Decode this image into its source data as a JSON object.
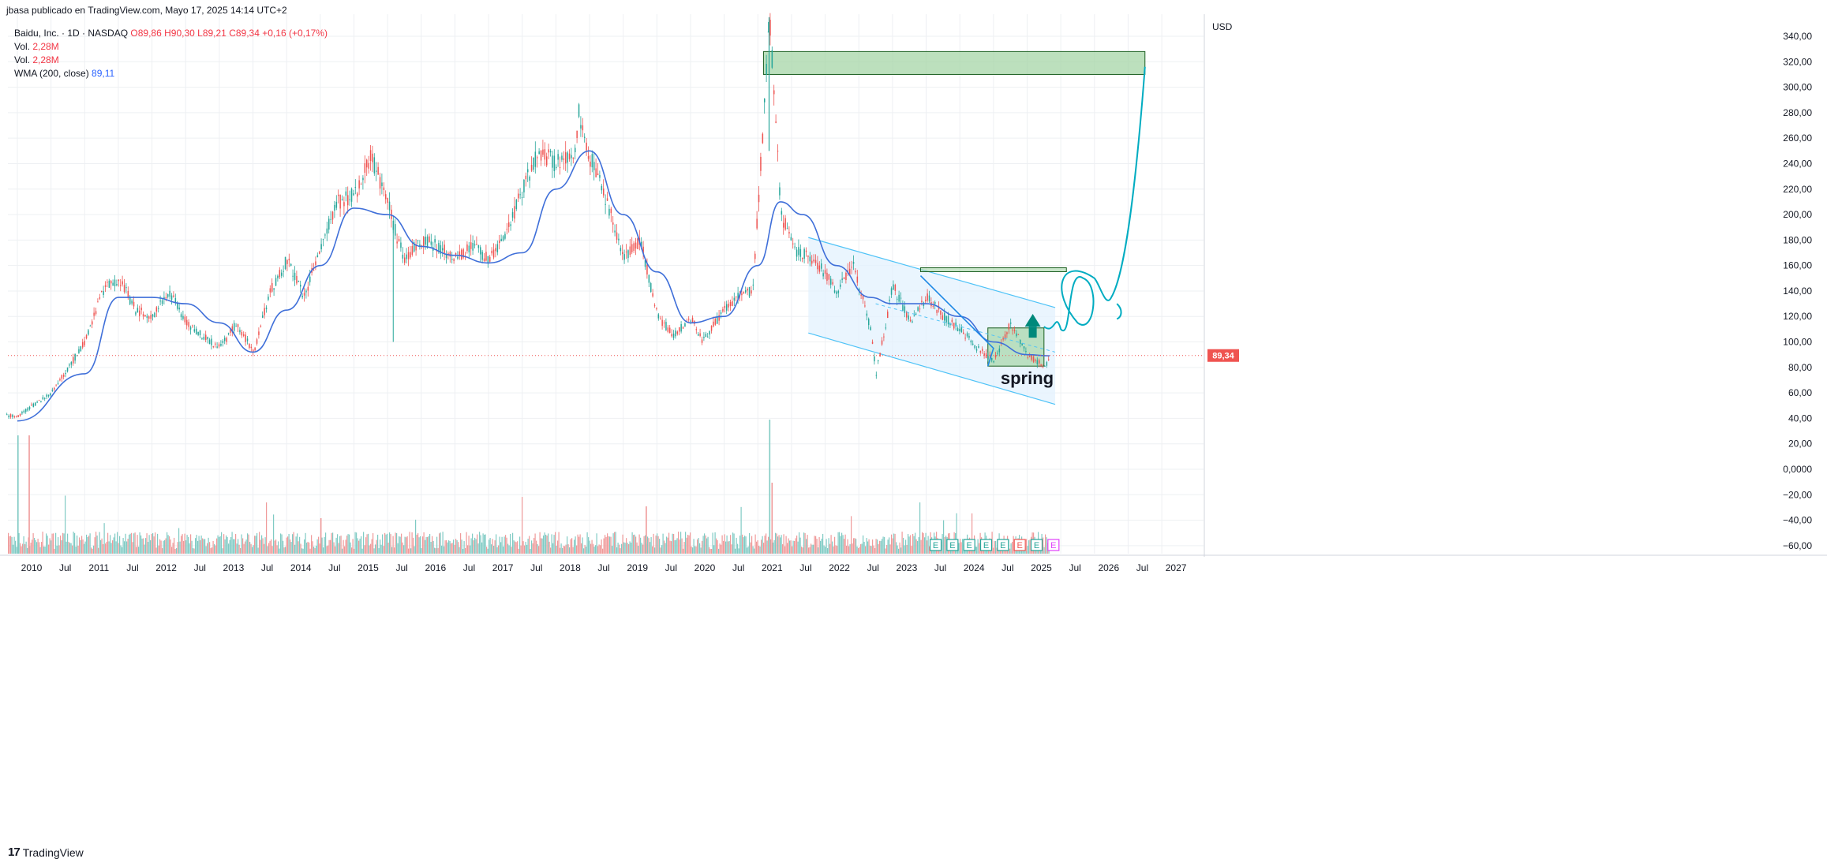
{
  "header": {
    "published": "jbasa publicado en TradingView.com, Mayo 17, 2025 14:14 UTC+2"
  },
  "legend": {
    "symbol": "Baidu, Inc. · 1D · NASDAQ",
    "open": "O89,86",
    "high": "H90,30",
    "low": "L89,21",
    "close": "C89,34",
    "change": "+0,16 (+0,17%)",
    "vol_label_1": "Vol.",
    "vol_value_1": "2,28M",
    "vol_label_2": "Vol.",
    "vol_value_2": "2,28M",
    "wma_label": "WMA (200, close)",
    "wma_value": "89,11"
  },
  "price_axis": {
    "currency": "USD",
    "current_price_tag": "89,34",
    "ticks": [
      "340,00",
      "320,00",
      "300,00",
      "280,00",
      "260,00",
      "240,00",
      "220,00",
      "200,00",
      "180,00",
      "160,00",
      "140,00",
      "120,00",
      "100,00",
      "80,00",
      "60,00",
      "40,00",
      "20,00",
      "0,0000",
      "−20,00",
      "−40,00",
      "−60,00"
    ]
  },
  "annotations": {
    "spring_label": "spring",
    "earnings_marker": "E"
  },
  "footer": {
    "logo_text": "TradingView"
  },
  "colors": {
    "up": "#26a69a",
    "down": "#ef5350",
    "wma": "#3f6fd9",
    "channel": "#4fc3f7",
    "zone_fill": "#a5d6a7",
    "zone_border": "#1b5e20",
    "drawing": "#00acc1",
    "arrow": "#00897b"
  },
  "chart_data": {
    "type": "line",
    "title": "",
    "xlabel": "",
    "ylabel": "USD",
    "ylim": [
      -65,
      350
    ],
    "x_ticks": [
      "2010",
      "Jul",
      "2011",
      "Jul",
      "2012",
      "Jul",
      "2013",
      "Jul",
      "2014",
      "Jul",
      "2015",
      "Jul",
      "2016",
      "Jul",
      "2017",
      "Jul",
      "2018",
      "Jul",
      "2019",
      "Jul",
      "2020",
      "Jul",
      "2021",
      "Jul",
      "2022",
      "Jul",
      "2023",
      "Jul",
      "2024",
      "Jul",
      "2025",
      "Jul",
      "2026",
      "Jul",
      "2027"
    ],
    "series": [
      {
        "name": "Close",
        "x": [
          "2010-01",
          "2010-07",
          "2011-01",
          "2011-04",
          "2011-07",
          "2011-10",
          "2012-01",
          "2012-04",
          "2012-07",
          "2012-10",
          "2013-01",
          "2013-04",
          "2013-07",
          "2013-10",
          "2014-01",
          "2014-04",
          "2014-07",
          "2014-10",
          "2015-01",
          "2015-04",
          "2015-07",
          "2015-08",
          "2015-10",
          "2016-01",
          "2016-04",
          "2016-07",
          "2016-10",
          "2017-01",
          "2017-04",
          "2017-07",
          "2017-10",
          "2018-01",
          "2018-04",
          "2018-05",
          "2018-07",
          "2018-10",
          "2019-01",
          "2019-04",
          "2019-07",
          "2019-10",
          "2020-01",
          "2020-03",
          "2020-06",
          "2020-09",
          "2020-12",
          "2021-02",
          "2021-03",
          "2021-05",
          "2021-08",
          "2021-11",
          "2022-03",
          "2022-06",
          "2022-09",
          "2022-10",
          "2023-01",
          "2023-04",
          "2023-07",
          "2023-10",
          "2024-01",
          "2024-04",
          "2024-07",
          "2024-10",
          "2025-01",
          "2025-04",
          "2025-05"
        ],
        "values": [
          42,
          60,
          100,
          140,
          150,
          125,
          120,
          140,
          115,
          105,
          95,
          115,
          92,
          140,
          165,
          135,
          175,
          210,
          215,
          245,
          210,
          190,
          165,
          180,
          175,
          165,
          175,
          165,
          185,
          220,
          250,
          240,
          245,
          280,
          245,
          210,
          165,
          180,
          120,
          105,
          120,
          100,
          120,
          135,
          140,
          280,
          355,
          200,
          170,
          165,
          140,
          160,
          110,
          75,
          145,
          115,
          135,
          120,
          110,
          95,
          85,
          115,
          90,
          80,
          89.34
        ]
      },
      {
        "name": "WMA (200, close)",
        "x": [
          "2010-01",
          "2011-01",
          "2011-07",
          "2012-01",
          "2012-07",
          "2013-01",
          "2013-07",
          "2014-01",
          "2014-07",
          "2015-01",
          "2015-07",
          "2016-01",
          "2016-07",
          "2017-01",
          "2017-07",
          "2018-01",
          "2018-07",
          "2019-01",
          "2019-07",
          "2020-01",
          "2020-07",
          "2021-01",
          "2021-05",
          "2021-09",
          "2022-03",
          "2022-09",
          "2023-01",
          "2023-07",
          "2024-01",
          "2024-07",
          "2025-01",
          "2025-05"
        ],
        "values": [
          38,
          75,
          135,
          135,
          130,
          115,
          92,
          125,
          160,
          205,
          200,
          175,
          168,
          162,
          170,
          220,
          250,
          200,
          155,
          115,
          120,
          160,
          210,
          200,
          160,
          135,
          130,
          130,
          120,
          100,
          90,
          89.11
        ]
      }
    ],
    "drawings": {
      "supply_zone_top": {
        "from": "2021-02",
        "to": "2026-10",
        "low": 310,
        "high": 328
      },
      "resistance_line": {
        "from": "2023-06",
        "to": "2025-08",
        "price": 157
      },
      "accumulation_box": {
        "from": "2024-06",
        "to": "2025-04",
        "low": 81,
        "high": 111
      },
      "descending_channel": {
        "upper": [
          [
            "2021-10",
            182
          ],
          [
            "2025-06",
            127
          ]
        ],
        "lower": [
          [
            "2021-10",
            107
          ],
          [
            "2025-06",
            51
          ]
        ]
      },
      "projected_path_target": 316,
      "current_price": 89.34
    }
  }
}
